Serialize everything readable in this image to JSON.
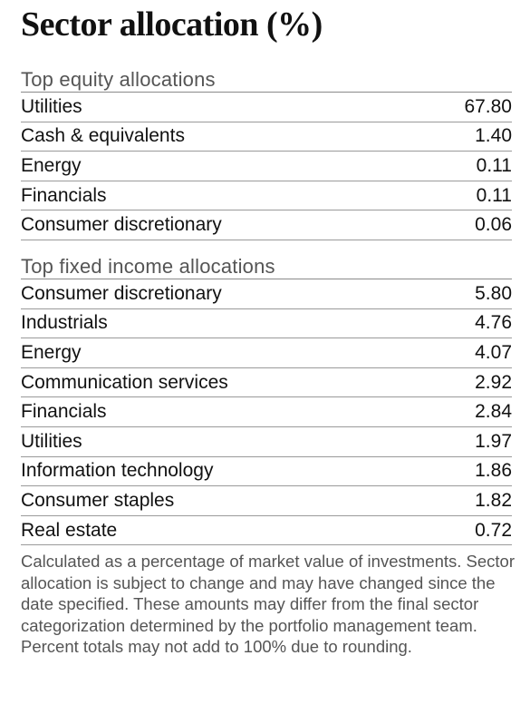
{
  "title": "Sector allocation (%)",
  "equity": {
    "heading": "Top equity allocations",
    "rows": [
      {
        "label": "Utilities",
        "value": "67.80"
      },
      {
        "label": "Cash & equivalents",
        "value": "1.40"
      },
      {
        "label": "Energy",
        "value": "0.11"
      },
      {
        "label": "Financials",
        "value": "0.11"
      },
      {
        "label": "Consumer discretionary",
        "value": "0.06"
      }
    ]
  },
  "fixed_income": {
    "heading": "Top fixed income allocations",
    "rows": [
      {
        "label": "Consumer discretionary",
        "value": "5.80"
      },
      {
        "label": "Industrials",
        "value": "4.76"
      },
      {
        "label": "Energy",
        "value": "4.07"
      },
      {
        "label": "Communication services",
        "value": "2.92"
      },
      {
        "label": "Financials",
        "value": "2.84"
      },
      {
        "label": "Utilities",
        "value": "1.97"
      },
      {
        "label": "Information technology",
        "value": "1.86"
      },
      {
        "label": "Consumer staples",
        "value": "1.82"
      },
      {
        "label": "Real estate",
        "value": "0.72"
      }
    ]
  },
  "footnote": "Calculated as a percentage of market value of investments. Sector allocation is subject to change and may have changed since the date specified. These amounts may differ from the final sector categorization determined by the portfolio management team. Percent totals may not add to 100% due to rounding."
}
